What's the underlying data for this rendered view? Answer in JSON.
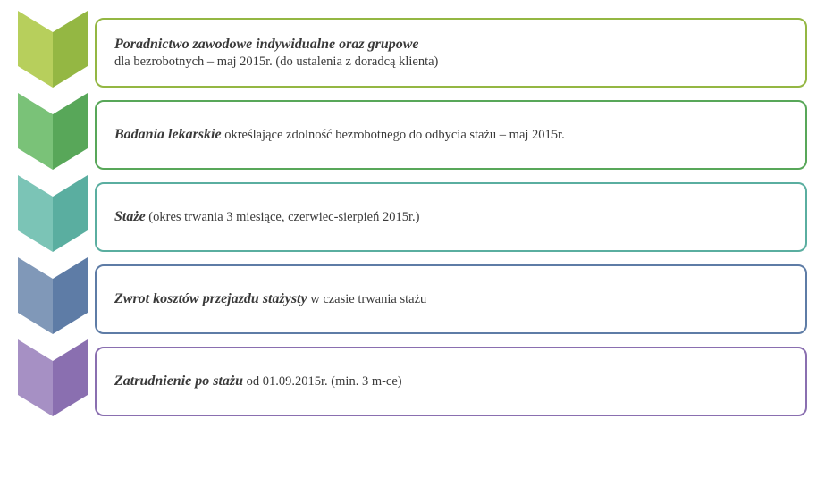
{
  "diagram": {
    "type": "process-chevron-list",
    "background_color": "#ffffff",
    "text_color": "#3a3a3a",
    "font_family": "Georgia, serif",
    "title_fontsize": 16,
    "desc_fontsize": 14.5,
    "chevron_width": 78,
    "chevron_height": 86,
    "box_border_radius": 10,
    "box_border_width": 2,
    "step_gap": 14,
    "steps": [
      {
        "title": "Poradnictwo zawodowe indywidualne oraz grupowe",
        "subline": "dla bezrobotnych – maj 2015r. (do ustalenia z doradcą klienta)",
        "desc": "",
        "color_light": "#b7cf5c",
        "color_dark": "#94b743",
        "border_color": "#94b743"
      },
      {
        "title": "Badania lekarskie",
        "desc": " określające zdolność bezrobotnego do odbycia stażu – maj 2015r.",
        "subline": "",
        "color_light": "#7ac278",
        "color_dark": "#58a759",
        "border_color": "#58a759"
      },
      {
        "title": "Staże",
        "desc": " (okres trwania 3 miesiące, czerwiec-sierpień 2015r.)",
        "subline": "",
        "color_light": "#7bc4b6",
        "color_dark": "#5aaea0",
        "border_color": "#5aaea0"
      },
      {
        "title": "Zwrot kosztów przejazdu stażysty",
        "desc": " w czasie trwania stażu",
        "subline": "",
        "color_light": "#8098b8",
        "color_dark": "#5e7ca6",
        "border_color": "#5e7ca6"
      },
      {
        "title": "Zatrudnienie po stażu",
        "desc": " od 01.09.2015r. (min. 3 m-ce)",
        "subline": "",
        "color_light": "#a690c4",
        "color_dark": "#8a6fb0",
        "border_color": "#8a6fb0"
      }
    ]
  }
}
